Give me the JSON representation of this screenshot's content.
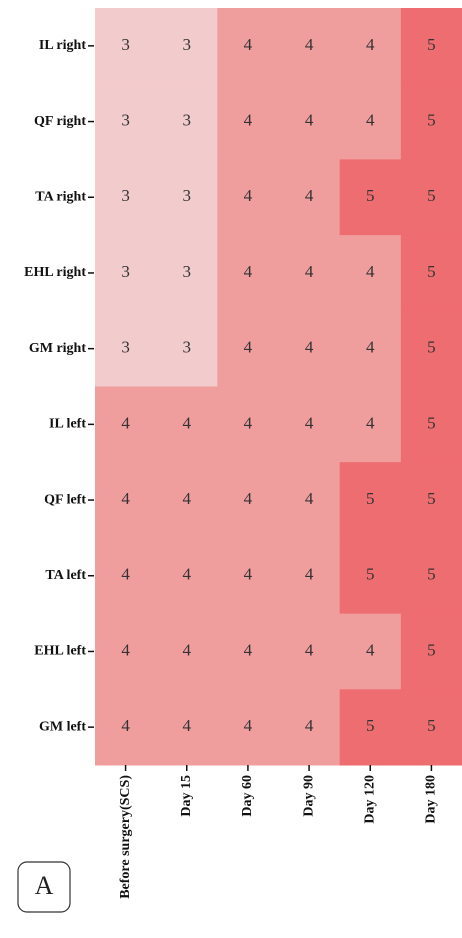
{
  "chart_data": {
    "type": "heatmap",
    "rows": [
      "IL right",
      "QF right",
      "TA right",
      "EHL right",
      "GM right",
      "IL left",
      "QF left",
      "TA left",
      "EHL left",
      "GM left"
    ],
    "columns": [
      "Before surgery(SCS)",
      "Day 15",
      "Day 60",
      "Day 90",
      "Day 120",
      "Day 180"
    ],
    "values": [
      [
        3,
        3,
        4,
        4,
        4,
        5
      ],
      [
        3,
        3,
        4,
        4,
        4,
        5
      ],
      [
        3,
        3,
        4,
        4,
        5,
        5
      ],
      [
        3,
        3,
        4,
        4,
        4,
        5
      ],
      [
        3,
        3,
        4,
        4,
        4,
        5
      ],
      [
        4,
        4,
        4,
        4,
        4,
        5
      ],
      [
        4,
        4,
        4,
        4,
        5,
        5
      ],
      [
        4,
        4,
        4,
        4,
        5,
        5
      ],
      [
        4,
        4,
        4,
        4,
        4,
        5
      ],
      [
        4,
        4,
        4,
        4,
        5,
        5
      ]
    ],
    "color_levels": [
      {
        "value": 3,
        "color": "#f2cbcc"
      },
      {
        "value": 4,
        "color": "#f09d9e"
      },
      {
        "value": 5,
        "color": "#ee6d70"
      }
    ],
    "panel_label": "A"
  }
}
